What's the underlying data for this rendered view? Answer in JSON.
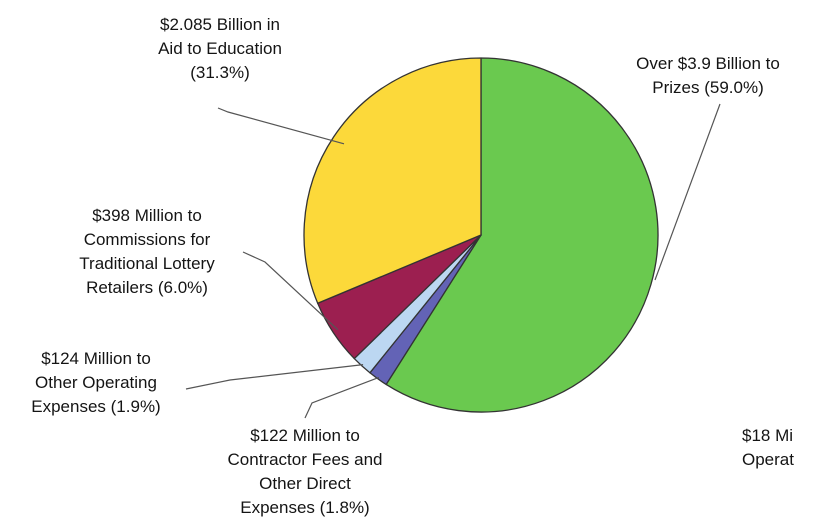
{
  "chart_data": {
    "type": "pie",
    "title": "",
    "slices": [
      {
        "value": 59.0,
        "color": "#6ac94f",
        "label": "Over $3.9 Billion to\nPrizes (59.0%)"
      },
      {
        "value": 1.8,
        "color": "#6363b6",
        "label": "$122 Million to\nContractor Fees and\nOther Direct\nExpenses (1.8%)"
      },
      {
        "value": 1.9,
        "color": "#bcd7f2",
        "label": "$124 Million to\nOther Operating\nExpenses (1.9%)"
      },
      {
        "value": 6.0,
        "color": "#9c1f50",
        "label": "$398 Million to\nCommissions for\nTraditional Lottery\nRetailers (6.0%)"
      },
      {
        "value": 31.3,
        "color": "#fcd93a",
        "label": "$2.085 Billion in\nAid to Education\n(31.3%)"
      }
    ],
    "cropped_label": "$18 Mi\nOperat",
    "outline_color": "#333333"
  }
}
